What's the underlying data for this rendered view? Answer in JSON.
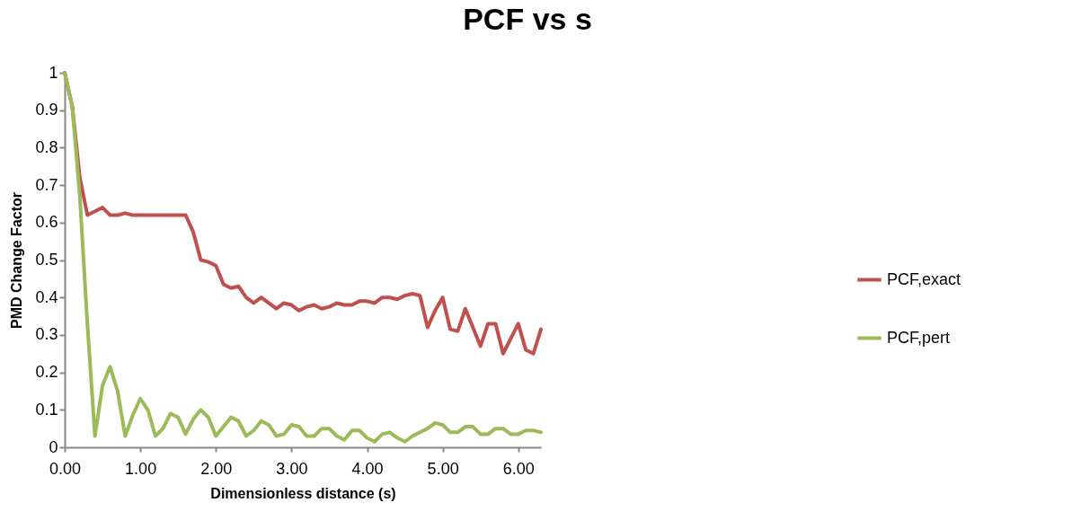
{
  "chart_data": {
    "type": "line",
    "title": "PCF vs s",
    "xlabel": "Dimensionless distance (s)",
    "ylabel": "PMD Change Factor",
    "x": [
      0,
      0.1,
      0.2,
      0.3,
      0.4,
      0.5,
      0.6,
      0.7,
      0.8,
      0.9,
      1.0,
      1.1,
      1.2,
      1.3,
      1.4,
      1.5,
      1.6,
      1.7,
      1.8,
      1.9,
      2.0,
      2.1,
      2.2,
      2.3,
      2.4,
      2.5,
      2.6,
      2.7,
      2.8,
      2.9,
      3.0,
      3.1,
      3.2,
      3.3,
      3.4,
      3.5,
      3.6,
      3.7,
      3.8,
      3.9,
      4.0,
      4.1,
      4.2,
      4.3,
      4.4,
      4.5,
      4.6,
      4.7,
      4.8,
      4.9,
      5.0,
      5.1,
      5.2,
      5.3,
      5.4,
      5.5,
      5.6,
      5.7,
      5.8,
      5.9,
      6.0,
      6.1,
      6.2,
      6.3
    ],
    "series": [
      {
        "name": "PCF,exact",
        "color": "#c0504d",
        "values": [
          1,
          0.91,
          0.72,
          0.62,
          0.63,
          0.64,
          0.62,
          0.62,
          0.625,
          0.62,
          0.62,
          0.62,
          0.62,
          0.62,
          0.62,
          0.62,
          0.62,
          0.575,
          0.5,
          0.495,
          0.485,
          0.435,
          0.425,
          0.43,
          0.4,
          0.385,
          0.4,
          0.385,
          0.37,
          0.385,
          0.38,
          0.365,
          0.375,
          0.38,
          0.37,
          0.375,
          0.385,
          0.38,
          0.38,
          0.39,
          0.39,
          0.385,
          0.4,
          0.4,
          0.395,
          0.405,
          0.41,
          0.405,
          0.32,
          0.365,
          0.4,
          0.315,
          0.31,
          0.37,
          0.32,
          0.27,
          0.33,
          0.33,
          0.25,
          0.29,
          0.33,
          0.26,
          0.25,
          0.315
        ]
      },
      {
        "name": "PCF,pert",
        "color": "#9bbb59",
        "values": [
          1,
          0.91,
          0.67,
          0.33,
          0.03,
          0.165,
          0.215,
          0.15,
          0.03,
          0.085,
          0.13,
          0.1,
          0.03,
          0.05,
          0.09,
          0.08,
          0.035,
          0.075,
          0.1,
          0.08,
          0.03,
          0.055,
          0.08,
          0.07,
          0.03,
          0.045,
          0.07,
          0.06,
          0.03,
          0.035,
          0.06,
          0.055,
          0.03,
          0.03,
          0.05,
          0.05,
          0.03,
          0.02,
          0.045,
          0.045,
          0.025,
          0.015,
          0.035,
          0.04,
          0.025,
          0.015,
          0.03,
          0.04,
          0.05,
          0.065,
          0.06,
          0.04,
          0.04,
          0.055,
          0.055,
          0.035,
          0.035,
          0.05,
          0.05,
          0.035,
          0.035,
          0.045,
          0.045,
          0.04
        ]
      }
    ],
    "xlim": [
      0,
      6.3
    ],
    "xticks": [
      {
        "value": 0,
        "label": "0.00"
      },
      {
        "value": 1,
        "label": "1.00"
      },
      {
        "value": 2,
        "label": "2.00"
      },
      {
        "value": 3,
        "label": "3.00"
      },
      {
        "value": 4,
        "label": "4.00"
      },
      {
        "value": 5,
        "label": "5.00"
      },
      {
        "value": 6,
        "label": "6.00"
      }
    ],
    "ylim": [
      0,
      1
    ],
    "yticks": [
      0,
      0.1,
      0.2,
      0.3,
      0.4,
      0.5,
      0.6,
      0.7,
      0.8,
      0.9,
      1
    ],
    "grid": false,
    "legend": "right",
    "marker": "none",
    "line_style": "solid"
  }
}
